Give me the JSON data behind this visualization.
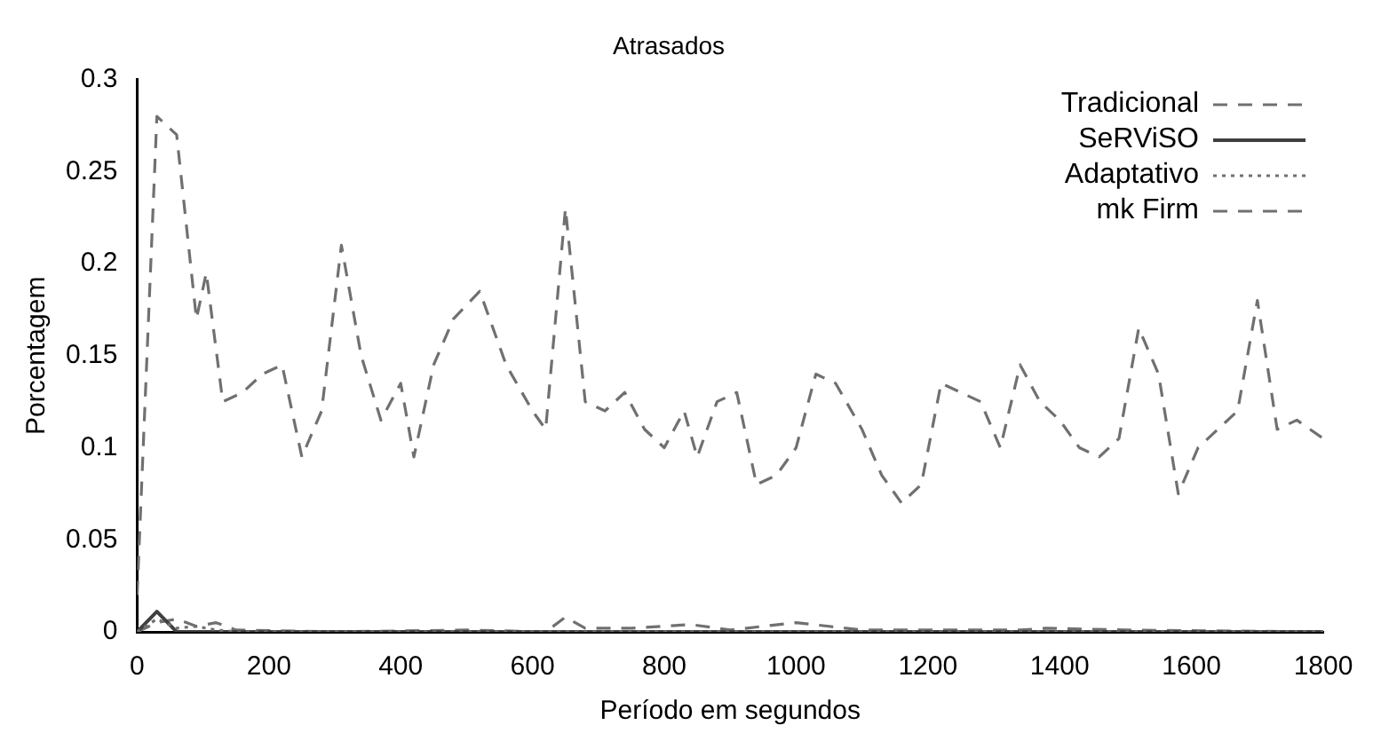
{
  "chart_data": {
    "type": "line",
    "title": "Atrasados",
    "xlabel": "Período em segundos",
    "ylabel": "Porcentagem",
    "xlim": [
      0,
      1800
    ],
    "xticks": [
      0,
      200,
      400,
      600,
      800,
      1000,
      1200,
      1400,
      1600,
      1800
    ],
    "ylim": [
      0,
      0.3
    ],
    "yticks": [
      0,
      0.05,
      0.1,
      0.15,
      0.2,
      0.25,
      0.3
    ],
    "grid": false,
    "legend": "top right",
    "marker": "none",
    "series": [
      {
        "name": "Tradicional",
        "color": "#707070",
        "line_style": "dashed",
        "x": [
          0,
          30,
          60,
          90,
          105,
          130,
          160,
          190,
          220,
          250,
          280,
          310,
          340,
          370,
          400,
          420,
          450,
          480,
          520,
          560,
          600,
          620,
          650,
          680,
          710,
          740,
          770,
          800,
          830,
          850,
          880,
          910,
          940,
          970,
          1000,
          1030,
          1060,
          1100,
          1130,
          1160,
          1190,
          1220,
          1250,
          1280,
          1310,
          1340,
          1370,
          1400,
          1430,
          1460,
          1490,
          1520,
          1550,
          1580,
          1610,
          1640,
          1670,
          1700,
          1730,
          1760,
          1800
        ],
        "values": [
          0.02,
          0.28,
          0.27,
          0.17,
          0.195,
          0.125,
          0.13,
          0.14,
          0.145,
          0.095,
          0.12,
          0.21,
          0.15,
          0.115,
          0.135,
          0.095,
          0.145,
          0.17,
          0.185,
          0.145,
          0.12,
          0.11,
          0.23,
          0.125,
          0.12,
          0.13,
          0.11,
          0.1,
          0.12,
          0.095,
          0.125,
          0.13,
          0.08,
          0.085,
          0.1,
          0.14,
          0.135,
          0.11,
          0.085,
          0.07,
          0.08,
          0.135,
          0.13,
          0.125,
          0.1,
          0.145,
          0.125,
          0.115,
          0.1,
          0.095,
          0.105,
          0.165,
          0.14,
          0.075,
          0.1,
          0.11,
          0.12,
          0.18,
          0.11,
          0.115,
          0.105
        ]
      },
      {
        "name": "SeRViSO",
        "color": "#404040",
        "line_style": "solid",
        "x": [
          0,
          30,
          60,
          120,
          300,
          600,
          900,
          1200,
          1500,
          1800
        ],
        "values": [
          0,
          0.011,
          0,
          0,
          0,
          0,
          0,
          0,
          0,
          0
        ]
      },
      {
        "name": "Adaptativo",
        "color": "#707070",
        "line_style": "dotted",
        "x": [
          0,
          30,
          60,
          90,
          120,
          150,
          300,
          600,
          900,
          1200,
          1500,
          1800
        ],
        "values": [
          0,
          0.007,
          0.002,
          0.003,
          0.001,
          0,
          0,
          0,
          0,
          0,
          0,
          0
        ]
      },
      {
        "name": "mk Firm",
        "color": "#707070",
        "line_style": "dashed",
        "x": [
          0,
          30,
          60,
          90,
          120,
          150,
          300,
          500,
          620,
          650,
          680,
          750,
          840,
          900,
          1000,
          1050,
          1100,
          1340,
          1380,
          1500,
          1800
        ],
        "values": [
          0,
          0.005,
          0.007,
          0.003,
          0.005,
          0.001,
          0,
          0.001,
          0,
          0.008,
          0.002,
          0.002,
          0.004,
          0.001,
          0.005,
          0.003,
          0.001,
          0.001,
          0.002,
          0.001,
          0
        ]
      }
    ]
  }
}
